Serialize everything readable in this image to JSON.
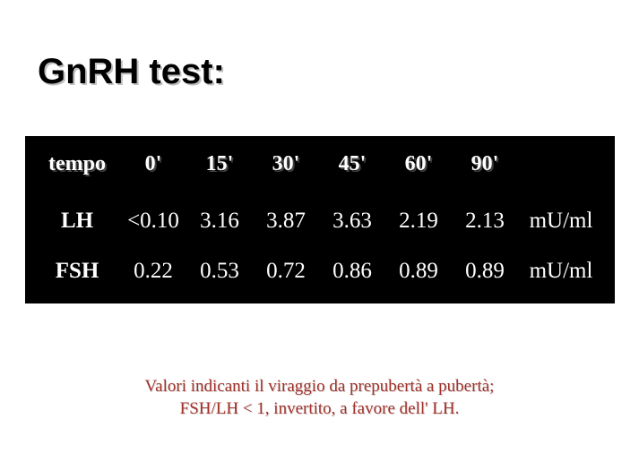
{
  "title": "GnRH test:",
  "table": {
    "header": {
      "label": "tempo",
      "times": [
        "0'",
        "15'",
        "30'",
        "45'",
        "60'",
        "90'"
      ],
      "unit": ""
    },
    "rows": [
      {
        "label": "LH",
        "values": [
          "<0.10",
          "3.16",
          "3.87",
          "3.63",
          "2.19",
          "2.13"
        ],
        "unit": "mU/ml"
      },
      {
        "label": "FSH",
        "values": [
          "0.22",
          "0.53",
          "0.72",
          "0.86",
          "0.89",
          "0.89"
        ],
        "unit": "mU/ml"
      }
    ],
    "styling": {
      "background_color": "#000000",
      "text_color": "#ffffff",
      "header_fontsize": 24,
      "data_fontsize": 25,
      "font_family": "Times New Roman",
      "header_shadow": "#404040"
    }
  },
  "footnote": {
    "line1": "Valori indicanti il viraggio da prepubertà a pubertà;",
    "line2": "FSH/LH < 1, invertito, a favore dell' LH.",
    "color": "#a03028",
    "fontsize": 19
  },
  "page": {
    "background_color": "#ffffff",
    "title_color": "#000000",
    "title_fontsize": 40,
    "title_font": "Arial",
    "title_shadow": "#bfbfbf"
  }
}
